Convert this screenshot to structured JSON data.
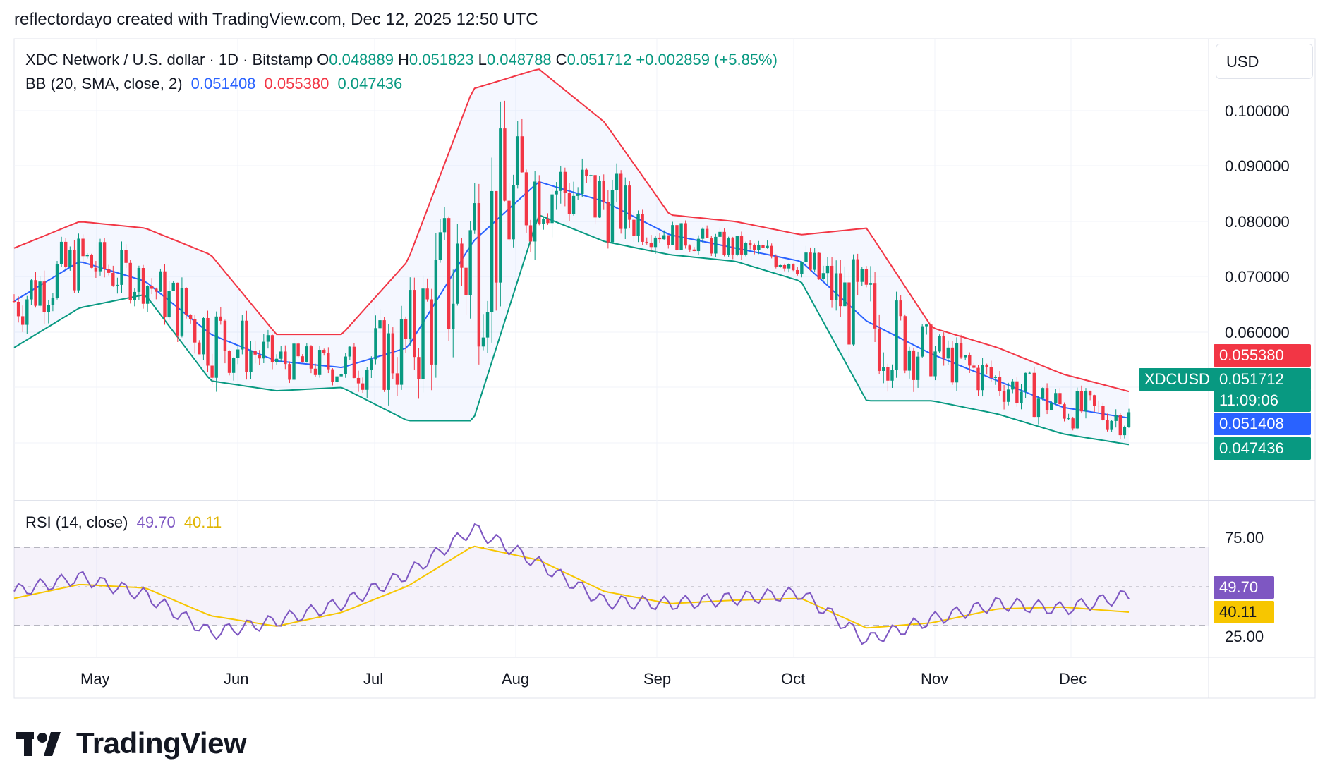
{
  "header": {
    "credit": "reflectordayo created with TradingView.com, Dec 12, 2025 12:50 UTC"
  },
  "legend": {
    "symbol": "XDC Network / U.S. dollar · 1D · Bitstamp",
    "o_label": "O",
    "o": "0.048889",
    "h_label": "H",
    "h": "0.051823",
    "l_label": "L",
    "l": "0.048788",
    "c_label": "C",
    "c": "0.051712",
    "change": "+0.002859 (+5.85%)",
    "bb_label": "BB (20, SMA, close, 2)",
    "bb_basis": "0.051408",
    "bb_upper": "0.055380",
    "bb_lower": "0.047436",
    "rsi_label": "RSI (14, close)",
    "rsi_value": "49.70",
    "rsi_ma": "40.11"
  },
  "currency_button": "USD",
  "price_axis": [
    "0.100000",
    "0.090000",
    "0.080000",
    "0.070000",
    "0.060000"
  ],
  "rsi_axis": [
    "75.00",
    "25.00"
  ],
  "tags": {
    "upper": "0.055380",
    "symbol": "XDCUSD",
    "last": "0.051712",
    "countdown": "11:09:06",
    "basis": "0.051408",
    "lower": "0.047436",
    "rsi": "49.70",
    "rsi_ma": "40.11"
  },
  "time_axis": [
    "May",
    "Jun",
    "Jul",
    "Aug",
    "Sep",
    "Oct",
    "Nov",
    "Dec"
  ],
  "logo_text": "TradingView",
  "colors": {
    "up": "#089981",
    "down": "#f23645",
    "bb_basis": "#2962ff",
    "bb_upper": "#f23645",
    "bb_lower": "#089981",
    "rsi": "#7e57c2",
    "rsi_ma": "#f7c600"
  },
  "chart_data": {
    "type": "candlestick",
    "series": [
      {
        "name": "BB basis",
        "x": [
          "Apr 15",
          "May 1",
          "May 20",
          "Jun 1",
          "Jun 20",
          "Jul 1",
          "Jul 10",
          "Jul 20",
          "Aug 1",
          "Aug 15",
          "Sep 1",
          "Sep 15",
          "Oct 1",
          "Oct 15",
          "Nov 1",
          "Nov 15",
          "Dec 1",
          "Dec 12"
        ],
        "values": [
          0.069,
          0.075,
          0.072,
          0.064,
          0.06,
          0.059,
          0.062,
          0.078,
          0.087,
          0.084,
          0.079,
          0.077,
          0.075,
          0.066,
          0.061,
          0.057,
          0.053,
          0.0514
        ]
      },
      {
        "name": "BB upper",
        "x": [
          "Apr 15",
          "May 1",
          "May 20",
          "Jun 1",
          "Jun 20",
          "Jul 1",
          "Jul 10",
          "Jul 20",
          "Aug 1",
          "Aug 15",
          "Sep 1",
          "Sep 15",
          "Oct 1",
          "Oct 15",
          "Nov 1",
          "Nov 15",
          "Dec 1",
          "Dec 12"
        ],
        "values": [
          0.077,
          0.081,
          0.08,
          0.076,
          0.064,
          0.064,
          0.075,
          0.101,
          0.104,
          0.096,
          0.082,
          0.081,
          0.079,
          0.08,
          0.065,
          0.062,
          0.058,
          0.0554
        ]
      },
      {
        "name": "BB lower",
        "x": [
          "Apr 15",
          "May 1",
          "May 20",
          "Jun 1",
          "Jun 20",
          "Jul 1",
          "Jul 10",
          "Jul 20",
          "Aug 1",
          "Aug 15",
          "Sep 1",
          "Sep 15",
          "Oct 1",
          "Oct 15",
          "Nov 1",
          "Nov 15",
          "Dec 1",
          "Dec 12"
        ],
        "values": [
          0.062,
          0.068,
          0.07,
          0.057,
          0.0555,
          0.056,
          0.051,
          0.051,
          0.082,
          0.078,
          0.076,
          0.075,
          0.072,
          0.054,
          0.054,
          0.052,
          0.049,
          0.0474
        ]
      }
    ],
    "rsi": {
      "x": [
        "Apr 15",
        "May 1",
        "May 20",
        "Jun 1",
        "Jun 20",
        "Jul 1",
        "Jul 10",
        "Jul 20",
        "Aug 1",
        "Aug 15",
        "Sep 1",
        "Sep 15",
        "Oct 1",
        "Oct 15",
        "Nov 1",
        "Nov 15",
        "Dec 1",
        "Dec 12"
      ],
      "values": [
        52,
        60,
        50,
        28,
        35,
        45,
        62,
        88,
        68,
        46,
        45,
        48,
        51,
        24,
        36,
        45,
        42,
        49.7
      ],
      "ma": [
        48,
        56,
        54,
        38,
        32,
        40,
        55,
        78,
        70,
        52,
        45,
        47,
        48,
        31,
        34,
        42,
        43,
        40.11
      ]
    },
    "ylim": [
      0.04,
      0.108
    ],
    "rsi_ylim": [
      15,
      100
    ]
  }
}
